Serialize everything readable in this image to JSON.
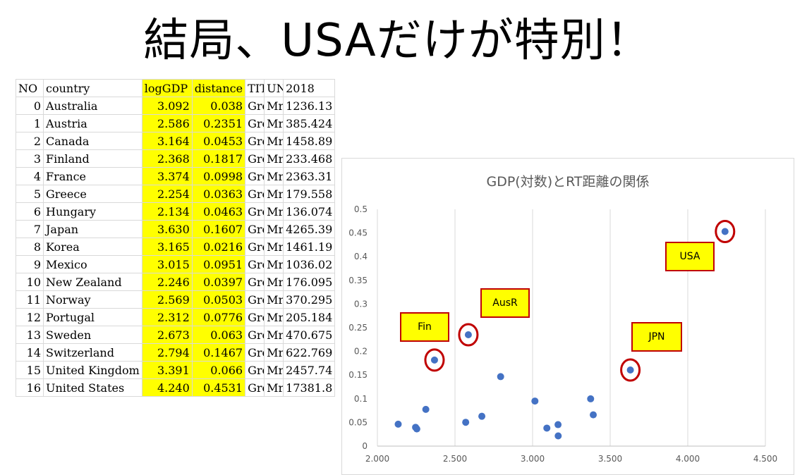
{
  "headline": "結局、USAだけが特別！",
  "table": {
    "headers": [
      "NO",
      "country",
      "logGDP",
      "distance",
      "TIT",
      "UN",
      "2018"
    ],
    "rows": [
      [
        "0",
        "Australia",
        "3.092",
        "0.038",
        "Gro",
        "Mrc",
        "1236.13"
      ],
      [
        "1",
        "Austria",
        "2.586",
        "0.2351",
        "Gro",
        "Mrc",
        "385.424"
      ],
      [
        "2",
        "Canada",
        "3.164",
        "0.0453",
        "Gro",
        "Mrc",
        "1458.89"
      ],
      [
        "3",
        "Finland",
        "2.368",
        "0.1817",
        "Gro",
        "Mrc",
        "233.468"
      ],
      [
        "4",
        "France",
        "3.374",
        "0.0998",
        "Gro",
        "Mrc",
        "2363.31"
      ],
      [
        "5",
        "Greece",
        "2.254",
        "0.0363",
        "Gro",
        "Mrc",
        "179.558"
      ],
      [
        "6",
        "Hungary",
        "2.134",
        "0.0463",
        "Gro",
        "Mrc",
        "136.074"
      ],
      [
        "7",
        "Japan",
        "3.630",
        "0.1607",
        "Gro",
        "Mrc",
        "4265.39"
      ],
      [
        "8",
        "Korea",
        "3.165",
        "0.0216",
        "Gro",
        "Mrc",
        "1461.19"
      ],
      [
        "9",
        "Mexico",
        "3.015",
        "0.0951",
        "Gro",
        "Mrc",
        "1036.02"
      ],
      [
        "10",
        "New Zealand",
        "2.246",
        "0.0397",
        "Gro",
        "Mrc",
        "176.095"
      ],
      [
        "11",
        "Norway",
        "2.569",
        "0.0503",
        "Gro",
        "Mrc",
        "370.295"
      ],
      [
        "12",
        "Portugal",
        "2.312",
        "0.0776",
        "Gro",
        "Mrc",
        "205.184"
      ],
      [
        "13",
        "Sweden",
        "2.673",
        "0.063",
        "Gro",
        "Mrc",
        "470.675"
      ],
      [
        "14",
        "Switzerland",
        "2.794",
        "0.1467",
        "Gro",
        "Mrc",
        "622.769"
      ],
      [
        "15",
        "United Kingdom",
        "3.391",
        "0.066",
        "Gro",
        "Mrc",
        "2457.74"
      ],
      [
        "16",
        "United States",
        "4.240",
        "0.4531",
        "Gro",
        "Mrc",
        "17381.8"
      ]
    ]
  },
  "chart_data": {
    "type": "scatter",
    "title": "GDP(対数)とRT距離の関係",
    "xlabel": "",
    "ylabel": "",
    "xlim": [
      2.0,
      4.5
    ],
    "ylim": [
      0,
      0.5
    ],
    "x_ticks": [
      "2.000",
      "2.500",
      "3.000",
      "3.500",
      "4.000",
      "4.500"
    ],
    "y_ticks": [
      "0",
      "0.05",
      "0.1",
      "0.15",
      "0.2",
      "0.25",
      "0.3",
      "0.35",
      "0.4",
      "0.45",
      "0.5"
    ],
    "grid": "vertical",
    "marker_color": "#4472c4",
    "highlight_color": "#c00000",
    "label_fill": "#ffff00",
    "points": [
      {
        "x": 3.092,
        "y": 0.038
      },
      {
        "x": 2.586,
        "y": 0.2351,
        "circled": true
      },
      {
        "x": 3.164,
        "y": 0.0453
      },
      {
        "x": 2.368,
        "y": 0.1817,
        "circled": true
      },
      {
        "x": 3.374,
        "y": 0.0998
      },
      {
        "x": 2.254,
        "y": 0.0363
      },
      {
        "x": 2.134,
        "y": 0.0463
      },
      {
        "x": 3.63,
        "y": 0.1607,
        "circled": true
      },
      {
        "x": 3.165,
        "y": 0.0216
      },
      {
        "x": 3.015,
        "y": 0.0951
      },
      {
        "x": 2.246,
        "y": 0.0397
      },
      {
        "x": 2.569,
        "y": 0.0503
      },
      {
        "x": 2.312,
        "y": 0.0776
      },
      {
        "x": 2.673,
        "y": 0.063
      },
      {
        "x": 2.794,
        "y": 0.1467
      },
      {
        "x": 3.391,
        "y": 0.066
      },
      {
        "x": 4.24,
        "y": 0.4531,
        "circled": true
      }
    ],
    "annotations": [
      "Fin",
      "AusR",
      "JPN",
      "USA"
    ]
  }
}
